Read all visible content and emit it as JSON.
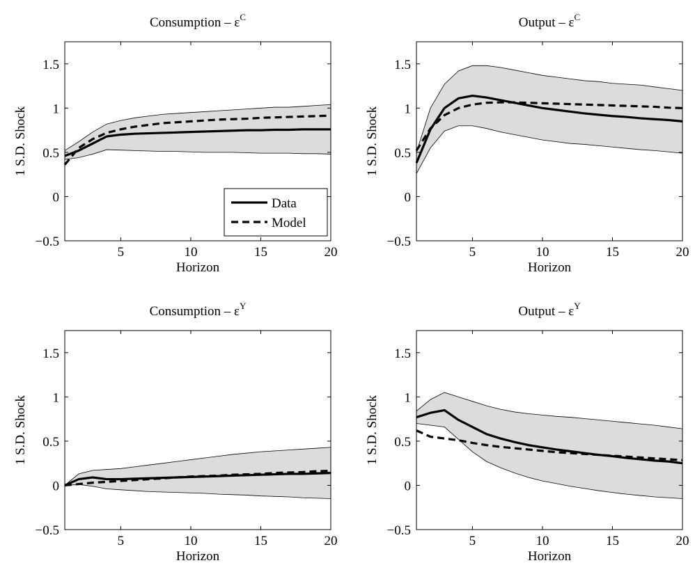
{
  "chart_data": [
    {
      "type": "line",
      "title": "Consumption – ε",
      "title_sup": "C",
      "xlabel": "Horizon",
      "ylabel": "1 S.D. Shock",
      "xlim": [
        1,
        20
      ],
      "ylim": [
        -0.5,
        1.75
      ],
      "xticks": [
        5,
        10,
        15,
        20
      ],
      "yticks": [
        -0.5,
        0,
        0.5,
        1,
        1.5
      ],
      "ytick_labels": [
        "−0.5",
        "0",
        "0.5",
        "1",
        "1.5"
      ],
      "x": [
        1,
        2,
        3,
        4,
        5,
        6,
        7,
        8,
        9,
        10,
        11,
        12,
        13,
        14,
        15,
        16,
        17,
        18,
        19,
        20
      ],
      "series": [
        {
          "name": "Data",
          "style": "solid",
          "values": [
            0.46,
            0.52,
            0.6,
            0.68,
            0.7,
            0.71,
            0.715,
            0.72,
            0.725,
            0.73,
            0.735,
            0.74,
            0.745,
            0.75,
            0.75,
            0.755,
            0.755,
            0.76,
            0.76,
            0.76
          ]
        },
        {
          "name": "Model",
          "style": "dashed",
          "values": [
            0.36,
            0.55,
            0.65,
            0.72,
            0.76,
            0.79,
            0.81,
            0.83,
            0.84,
            0.85,
            0.86,
            0.87,
            0.875,
            0.88,
            0.89,
            0.895,
            0.9,
            0.905,
            0.91,
            0.915
          ]
        }
      ],
      "band_upper": [
        0.52,
        0.62,
        0.73,
        0.82,
        0.86,
        0.89,
        0.91,
        0.93,
        0.94,
        0.95,
        0.96,
        0.97,
        0.98,
        0.99,
        1.0,
        1.01,
        1.01,
        1.02,
        1.03,
        1.04
      ],
      "band_lower": [
        0.42,
        0.44,
        0.48,
        0.53,
        0.525,
        0.52,
        0.515,
        0.51,
        0.51,
        0.505,
        0.5,
        0.5,
        0.5,
        0.495,
        0.49,
        0.49,
        0.49,
        0.485,
        0.485,
        0.48
      ],
      "legend": {
        "placement": "bottom-right",
        "entries": [
          "Data",
          "Model"
        ]
      },
      "grid": false
    },
    {
      "type": "line",
      "title": "Output – ε",
      "title_sup": "C",
      "xlabel": "Horizon",
      "ylabel": "1 S.D. Shock",
      "xlim": [
        1,
        20
      ],
      "ylim": [
        -0.5,
        1.75
      ],
      "xticks": [
        5,
        10,
        15,
        20
      ],
      "yticks": [
        -0.5,
        0,
        0.5,
        1,
        1.5
      ],
      "ytick_labels": [
        "−0.5",
        "0",
        "0.5",
        "1",
        "1.5"
      ],
      "x": [
        1,
        2,
        3,
        4,
        5,
        6,
        7,
        8,
        9,
        10,
        11,
        12,
        13,
        14,
        15,
        16,
        17,
        18,
        19,
        20
      ],
      "series": [
        {
          "name": "Data",
          "style": "solid",
          "values": [
            0.38,
            0.76,
            1.0,
            1.11,
            1.14,
            1.12,
            1.09,
            1.06,
            1.03,
            1.0,
            0.98,
            0.96,
            0.94,
            0.925,
            0.91,
            0.9,
            0.885,
            0.875,
            0.865,
            0.85
          ]
        },
        {
          "name": "Model",
          "style": "dashed",
          "values": [
            0.52,
            0.77,
            0.92,
            1.0,
            1.04,
            1.06,
            1.065,
            1.065,
            1.06,
            1.055,
            1.05,
            1.045,
            1.04,
            1.035,
            1.03,
            1.025,
            1.02,
            1.015,
            1.005,
            1.0
          ]
        }
      ],
      "band_upper": [
        0.5,
        1.0,
        1.27,
        1.42,
        1.48,
        1.48,
        1.46,
        1.43,
        1.4,
        1.37,
        1.35,
        1.33,
        1.31,
        1.3,
        1.28,
        1.27,
        1.26,
        1.24,
        1.22,
        1.2
      ],
      "band_lower": [
        0.26,
        0.55,
        0.74,
        0.8,
        0.8,
        0.77,
        0.73,
        0.7,
        0.67,
        0.64,
        0.62,
        0.6,
        0.59,
        0.575,
        0.56,
        0.545,
        0.53,
        0.52,
        0.505,
        0.49
      ],
      "grid": false
    },
    {
      "type": "line",
      "title": "Consumption – ε",
      "title_sup": "Y",
      "xlabel": "Horizon",
      "ylabel": "1 S.D. Shock",
      "xlim": [
        1,
        20
      ],
      "ylim": [
        -0.5,
        1.75
      ],
      "xticks": [
        5,
        10,
        15,
        20
      ],
      "yticks": [
        -0.5,
        0,
        0.5,
        1,
        1.5
      ],
      "ytick_labels": [
        "−0.5",
        "0",
        "0.5",
        "1",
        "1.5"
      ],
      "x": [
        1,
        2,
        3,
        4,
        5,
        6,
        7,
        8,
        9,
        10,
        11,
        12,
        13,
        14,
        15,
        16,
        17,
        18,
        19,
        20
      ],
      "series": [
        {
          "name": "Data",
          "style": "solid",
          "values": [
            0.0,
            0.07,
            0.09,
            0.07,
            0.07,
            0.075,
            0.08,
            0.085,
            0.09,
            0.095,
            0.1,
            0.105,
            0.11,
            0.115,
            0.12,
            0.125,
            0.13,
            0.13,
            0.135,
            0.14
          ]
        },
        {
          "name": "Model",
          "style": "dashed",
          "values": [
            0.0,
            0.015,
            0.03,
            0.04,
            0.05,
            0.06,
            0.07,
            0.08,
            0.09,
            0.1,
            0.105,
            0.11,
            0.12,
            0.125,
            0.13,
            0.14,
            0.145,
            0.15,
            0.16,
            0.165
          ]
        }
      ],
      "band_upper": [
        0.0,
        0.13,
        0.17,
        0.18,
        0.19,
        0.21,
        0.23,
        0.25,
        0.27,
        0.29,
        0.31,
        0.33,
        0.35,
        0.365,
        0.38,
        0.39,
        0.4,
        0.41,
        0.42,
        0.43
      ],
      "band_lower": [
        0.0,
        0.01,
        -0.01,
        -0.04,
        -0.05,
        -0.06,
        -0.07,
        -0.075,
        -0.08,
        -0.085,
        -0.09,
        -0.1,
        -0.105,
        -0.11,
        -0.12,
        -0.125,
        -0.13,
        -0.14,
        -0.145,
        -0.15
      ],
      "grid": false
    },
    {
      "type": "line",
      "title": "Output – ε",
      "title_sup": "Y",
      "xlabel": "Horizon",
      "ylabel": "1 S.D. Shock",
      "xlim": [
        1,
        20
      ],
      "ylim": [
        -0.5,
        1.75
      ],
      "xticks": [
        5,
        10,
        15,
        20
      ],
      "yticks": [
        -0.5,
        0,
        0.5,
        1,
        1.5
      ],
      "ytick_labels": [
        "−0.5",
        "0",
        "0.5",
        "1",
        "1.5"
      ],
      "x": [
        1,
        2,
        3,
        4,
        5,
        6,
        7,
        8,
        9,
        10,
        11,
        12,
        13,
        14,
        15,
        16,
        17,
        18,
        19,
        20
      ],
      "series": [
        {
          "name": "Data",
          "style": "solid",
          "values": [
            0.77,
            0.82,
            0.85,
            0.74,
            0.66,
            0.58,
            0.53,
            0.49,
            0.455,
            0.43,
            0.405,
            0.385,
            0.365,
            0.345,
            0.33,
            0.31,
            0.295,
            0.28,
            0.27,
            0.25
          ]
        },
        {
          "name": "Model",
          "style": "dashed",
          "values": [
            0.62,
            0.55,
            0.53,
            0.51,
            0.48,
            0.455,
            0.435,
            0.42,
            0.405,
            0.39,
            0.375,
            0.365,
            0.355,
            0.345,
            0.335,
            0.325,
            0.315,
            0.305,
            0.295,
            0.285
          ]
        }
      ],
      "band_upper": [
        0.84,
        0.97,
        1.05,
        1.0,
        0.95,
        0.9,
        0.86,
        0.83,
        0.81,
        0.795,
        0.78,
        0.77,
        0.755,
        0.74,
        0.725,
        0.71,
        0.695,
        0.68,
        0.66,
        0.64
      ],
      "band_lower": [
        0.7,
        0.68,
        0.66,
        0.52,
        0.38,
        0.27,
        0.2,
        0.14,
        0.09,
        0.05,
        0.02,
        -0.01,
        -0.035,
        -0.06,
        -0.08,
        -0.1,
        -0.115,
        -0.13,
        -0.14,
        -0.15
      ],
      "grid": false
    }
  ]
}
